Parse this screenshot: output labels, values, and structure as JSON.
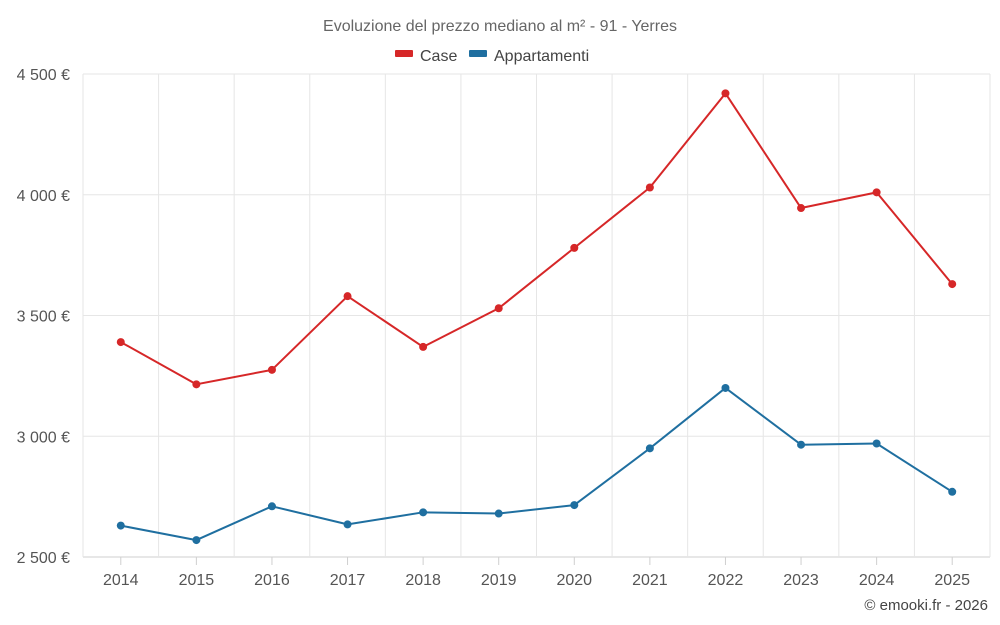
{
  "chart_data": {
    "type": "line",
    "title": "Evoluzione del prezzo mediano al m² - 91 - Yerres",
    "categories": [
      "2014",
      "2015",
      "2016",
      "2017",
      "2018",
      "2019",
      "2020",
      "2021",
      "2022",
      "2023",
      "2024",
      "2025"
    ],
    "series": [
      {
        "name": "Case",
        "color": "#d62728",
        "values": [
          3390,
          3215,
          3275,
          3580,
          3370,
          3530,
          3780,
          4030,
          4420,
          3945,
          4010,
          3630
        ]
      },
      {
        "name": "Appartamenti",
        "color": "#1f6fa0",
        "values": [
          2630,
          2570,
          2710,
          2635,
          2685,
          2680,
          2715,
          2950,
          3200,
          2965,
          2970,
          2770
        ]
      }
    ],
    "ylim": [
      2500,
      4500
    ],
    "yticks": [
      2500,
      3000,
      3500,
      4000,
      4500
    ],
    "ytick_labels": [
      "2 500 €",
      "3 000 €",
      "3 500 €",
      "4 000 €",
      "4 500 €"
    ],
    "grid": true,
    "legend_position": "top-center",
    "xlabel": "",
    "ylabel": ""
  },
  "credit": "© emooki.fr - 2026"
}
